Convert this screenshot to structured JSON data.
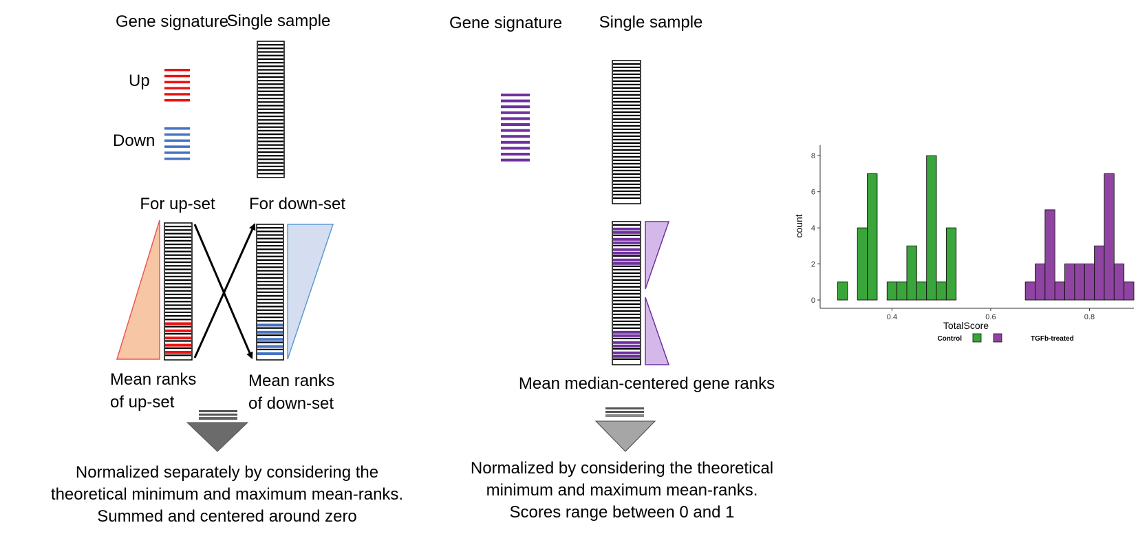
{
  "left_panel": {
    "gene_signature_label": "Gene signature",
    "single_sample_label": "Single sample",
    "up_label": "Up",
    "down_label": "Down",
    "for_up_set_label": "For up-set",
    "for_down_set_label": "For down-set",
    "mean_ranks_up": [
      "Mean ranks",
      "of up-set"
    ],
    "mean_ranks_down": [
      "Mean ranks",
      "of down-set"
    ],
    "normalization_text": [
      "Normalized separately by considering the",
      "theoretical minimum and maximum mean-ranks.",
      "Summed and centered around zero"
    ],
    "colors": {
      "up": "#ee1111",
      "down": "#4472c4",
      "up_triangle": "#f7c6a4",
      "down_triangle": "#d4def0"
    }
  },
  "middle_panel": {
    "gene_signature_label": "Gene signature",
    "single_sample_label": "Single sample",
    "mean_median_label": "Mean median-centered gene ranks",
    "normalization_text": [
      "Normalized by considering the theoretical",
      "minimum and maximum mean-ranks.",
      "Scores range between 0 and 1"
    ],
    "colors": {
      "gene": "#7030a0",
      "triangle": "#d5b8ea"
    }
  },
  "chart_data": {
    "type": "bar",
    "title": "",
    "xlabel": "TotalScore",
    "ylabel": "count",
    "xlim": [
      0.26,
      0.89
    ],
    "ylim": [
      0,
      8.2
    ],
    "x_ticks": [
      0.4,
      0.6,
      0.8
    ],
    "x_tick_labels": [
      "0.4",
      "0.6",
      "0.8"
    ],
    "y_ticks": [
      0,
      2,
      4,
      6,
      8
    ],
    "y_tick_labels": [
      "0",
      "2",
      "4",
      "6",
      "8"
    ],
    "bin_width": 0.02,
    "legend_placement": "bottom",
    "grid": false,
    "series": [
      {
        "name": "Control",
        "color": "#3aa53a",
        "bins": [
          [
            0.3,
            1
          ],
          [
            0.34,
            4
          ],
          [
            0.36,
            7
          ],
          [
            0.4,
            1
          ],
          [
            0.42,
            1
          ],
          [
            0.44,
            3
          ],
          [
            0.46,
            1
          ],
          [
            0.48,
            8
          ],
          [
            0.5,
            1
          ],
          [
            0.52,
            4
          ]
        ]
      },
      {
        "name": "TGFb-treated",
        "color": "#8e44a0",
        "bins": [
          [
            0.68,
            1
          ],
          [
            0.7,
            2
          ],
          [
            0.72,
            5
          ],
          [
            0.74,
            1
          ],
          [
            0.76,
            2
          ],
          [
            0.78,
            2
          ],
          [
            0.8,
            2
          ],
          [
            0.82,
            3
          ],
          [
            0.84,
            7
          ],
          [
            0.86,
            2
          ],
          [
            0.88,
            1
          ]
        ]
      }
    ]
  }
}
